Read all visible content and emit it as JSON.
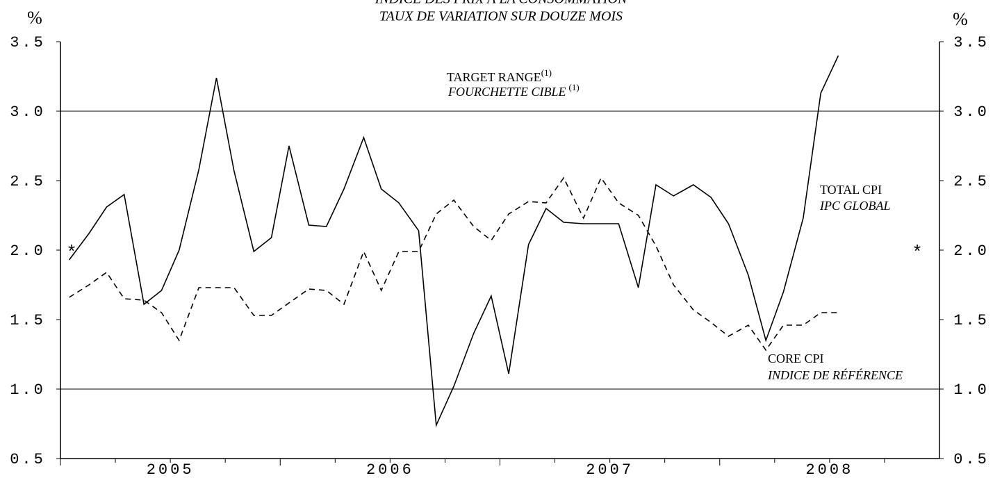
{
  "chart_data": {
    "type": "line",
    "title": "INDICE DES PRIX À LA CONSOMMATION",
    "subtitle": "TAUX DE VARIATION SUR DOUZE MOIS",
    "y_label": "%",
    "y2_label": "%",
    "x": [
      2005.04,
      2005.13,
      2005.21,
      2005.29,
      2005.38,
      2005.46,
      2005.54,
      2005.63,
      2005.71,
      2005.79,
      2005.88,
      2005.96,
      2006.04,
      2006.13,
      2006.21,
      2006.29,
      2006.38,
      2006.46,
      2006.54,
      2006.63,
      2006.71,
      2006.79,
      2006.88,
      2006.96,
      2007.04,
      2007.13,
      2007.21,
      2007.29,
      2007.38,
      2007.46,
      2007.54,
      2007.63,
      2007.71,
      2007.79,
      2007.88,
      2007.96,
      2008.04,
      2008.13,
      2008.21,
      2008.29,
      2008.38,
      2008.46,
      2008.54
    ],
    "series": [
      {
        "name": "TOTAL CPI",
        "name_fr": "IPC GLOBAL",
        "color": "#000000",
        "style": "solid",
        "values": [
          1.93,
          2.12,
          2.31,
          2.4,
          1.61,
          1.71,
          2.0,
          2.58,
          3.24,
          2.57,
          1.99,
          2.09,
          2.75,
          2.18,
          2.17,
          2.44,
          2.81,
          2.44,
          2.34,
          2.14,
          0.74,
          1.02,
          1.4,
          1.67,
          1.11,
          2.04,
          2.3,
          2.2,
          2.19,
          2.19,
          2.19,
          1.73,
          2.47,
          2.39,
          2.47,
          2.38,
          2.19,
          1.82,
          1.35,
          1.7,
          2.23,
          3.13,
          3.4
        ]
      },
      {
        "name": "CORE CPI",
        "name_fr": "INDICE DE RÉFÉRENCE",
        "color": "#000000",
        "style": "dashed",
        "values": [
          1.66,
          1.75,
          1.84,
          1.65,
          1.64,
          1.55,
          1.35,
          1.73,
          1.73,
          1.73,
          1.53,
          1.53,
          1.62,
          1.72,
          1.71,
          1.61,
          1.99,
          1.71,
          1.99,
          1.99,
          2.26,
          2.36,
          2.17,
          2.07,
          2.26,
          2.35,
          2.34,
          2.52,
          2.23,
          2.52,
          2.34,
          2.25,
          2.03,
          1.75,
          1.57,
          1.48,
          1.38,
          1.46,
          1.28,
          1.46,
          1.46,
          1.55,
          1.55
        ]
      }
    ],
    "xlim": [
      2005,
      2009
    ],
    "xticks": [
      2005,
      2006,
      2007,
      2008
    ],
    "ylim": [
      0.5,
      3.5
    ],
    "yticks": [
      {
        "value": 0.5,
        "label": "0.5"
      },
      {
        "value": 1,
        "label": "1.0"
      },
      {
        "value": 1.5,
        "label": "1.5"
      },
      {
        "value": 2,
        "label": "2.0"
      },
      {
        "value": 2.5,
        "label": "2.5"
      },
      {
        "value": 3,
        "label": "3.0"
      },
      {
        "value": 3.5,
        "label": "3.5"
      }
    ],
    "target_range": [
      1,
      3
    ],
    "target_label": "TARGET RANGE",
    "target_label_fr": "FOURCHETTE CIBLE",
    "target_note": "(1)",
    "marker": {
      "symbol": "*",
      "value": 2
    }
  }
}
